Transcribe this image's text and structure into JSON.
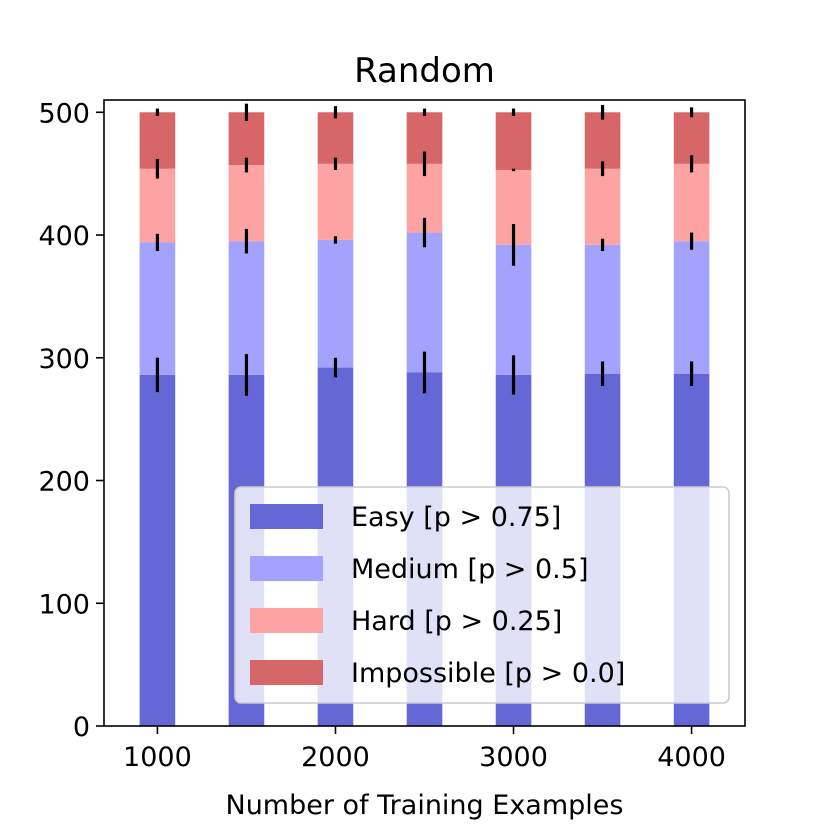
{
  "chart_data": {
    "type": "bar",
    "stacked": true,
    "title": "Random",
    "xlabel": "Number of Training Examples",
    "ylabel": "",
    "ylim": [
      0,
      510
    ],
    "xlim": [
      700,
      4300
    ],
    "yticks": [
      0,
      100,
      200,
      300,
      400,
      500
    ],
    "ytick_labels": [
      "0",
      "100",
      "200",
      "300",
      "400",
      "500"
    ],
    "xticks": [
      1000,
      2000,
      3000,
      4000
    ],
    "xtick_labels": [
      "1000",
      "2000",
      "3000",
      "4000"
    ],
    "x": [
      1000,
      1500,
      2000,
      2500,
      3000,
      3500,
      4000
    ],
    "bar_width": 200,
    "grid": false,
    "legend_position": "lower-right",
    "series": [
      {
        "name": "Easy [p > 0.75]",
        "color": "#6667d6",
        "values": [
          286,
          286,
          292,
          288,
          286,
          287,
          287
        ],
        "errors": [
          14,
          17,
          8,
          17,
          16,
          10,
          10
        ]
      },
      {
        "name": "Medium [p > 0.5]",
        "color": "#a3a3fd",
        "values": [
          108,
          109,
          104,
          114,
          106,
          105,
          108
        ],
        "errors": [
          7,
          10,
          3,
          12,
          17,
          5,
          7
        ]
      },
      {
        "name": "Hard [p > 0.25]",
        "color": "#fea3a3",
        "values": [
          60,
          62,
          62,
          56,
          61,
          62,
          63
        ],
        "errors": [
          8,
          6,
          5,
          10,
          1,
          6,
          7
        ]
      },
      {
        "name": "Impossible [p > 0.0]",
        "color": "#d66667",
        "values": [
          46,
          43,
          42,
          42,
          47,
          46,
          42
        ],
        "errors": [
          3,
          7,
          5,
          3,
          3,
          6,
          4
        ]
      }
    ]
  }
}
